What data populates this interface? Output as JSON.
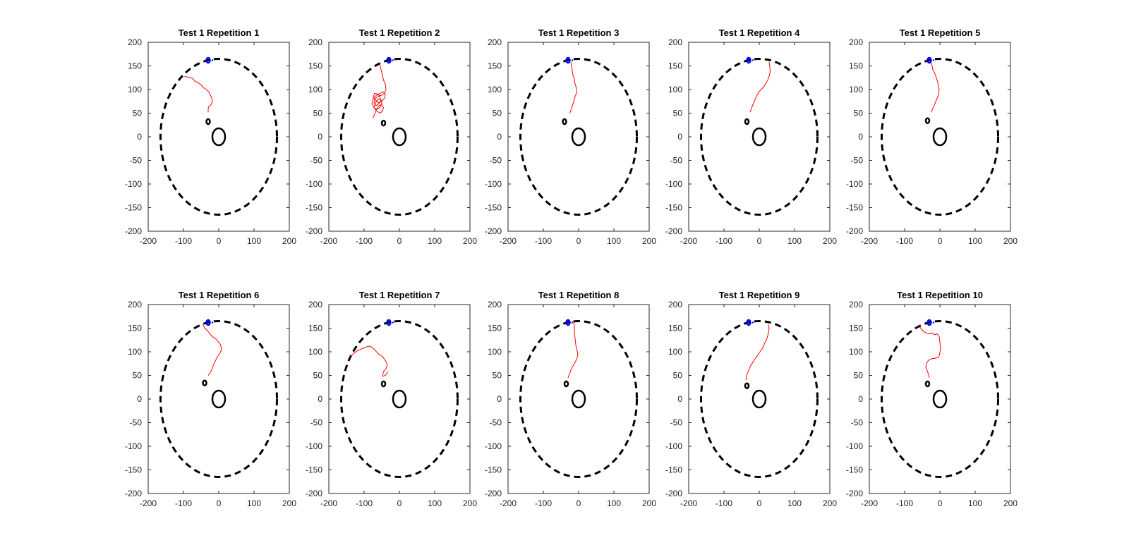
{
  "chart_data": [
    {
      "type": "line",
      "title": "Test 1 Repetition 1",
      "xlim": [
        -200,
        200
      ],
      "ylim": [
        -200,
        200
      ],
      "xticks": [
        -200,
        -100,
        0,
        100,
        200
      ],
      "yticks": [
        -200,
        -150,
        -100,
        -50,
        0,
        50,
        100,
        150,
        200
      ],
      "arena": {
        "style": "dashed",
        "color": "#000000",
        "cx": 0,
        "cy": 0,
        "r": 165
      },
      "platform": {
        "color": "#000000",
        "cx": 0,
        "cy": 0,
        "r": 18
      },
      "start_marker": {
        "color": "#000000",
        "x": -30,
        "y": 32
      },
      "goal_marker": {
        "color": "#0000ff",
        "x": -30,
        "y": 162
      },
      "series": [
        {
          "color": "#ff0000",
          "x": [
            -97,
            -85,
            -75,
            -68,
            -60,
            -50,
            -42,
            -35,
            -28,
            -24,
            -20,
            -18,
            -22,
            -28,
            -30,
            -30
          ],
          "y": [
            128,
            126,
            124,
            118,
            115,
            110,
            103,
            100,
            95,
            88,
            82,
            74,
            68,
            64,
            60,
            52
          ]
        }
      ]
    },
    {
      "type": "line",
      "title": "Test 1 Repetition 2",
      "xlim": [
        -200,
        200
      ],
      "ylim": [
        -200,
        200
      ],
      "xticks": [
        -200,
        -100,
        0,
        100,
        200
      ],
      "yticks": [
        -200,
        -150,
        -100,
        -50,
        0,
        50,
        100,
        150,
        200
      ],
      "arena": {
        "style": "dashed",
        "color": "#000000",
        "cx": 0,
        "cy": 0,
        "r": 165
      },
      "platform": {
        "color": "#000000",
        "cx": 0,
        "cy": 0,
        "r": 18
      },
      "start_marker": {
        "color": "#000000",
        "x": -45,
        "y": 29
      },
      "goal_marker": {
        "color": "#0000ff",
        "x": -30,
        "y": 162
      },
      "series": [
        {
          "color": "#ff0000",
          "x": [
            -55,
            -52,
            -48,
            -45,
            -40,
            -38,
            -42,
            -50,
            -60,
            -70,
            -72,
            -66,
            -58,
            -52,
            -60,
            -70,
            -74,
            -68,
            -60,
            -50,
            -42,
            -40,
            -46,
            -55,
            -65,
            -75,
            -78,
            -72,
            -64,
            -55,
            -50,
            -52,
            -60,
            -68,
            -72,
            -65,
            -55,
            -48,
            -45,
            -50,
            -58,
            -65,
            -70,
            -75
          ],
          "y": [
            152,
            142,
            130,
            120,
            112,
            102,
            92,
            88,
            86,
            80,
            72,
            66,
            70,
            78,
            90,
            92,
            85,
            78,
            72,
            75,
            82,
            90,
            95,
            92,
            88,
            80,
            70,
            62,
            58,
            62,
            70,
            78,
            80,
            72,
            62,
            55,
            50,
            54,
            62,
            68,
            66,
            58,
            48,
            40
          ]
        }
      ]
    },
    {
      "type": "line",
      "title": "Test 1 Repetition 3",
      "xlim": [
        -200,
        200
      ],
      "ylim": [
        -200,
        200
      ],
      "xticks": [
        -200,
        -100,
        0,
        100,
        200
      ],
      "yticks": [
        -200,
        -150,
        -100,
        -50,
        0,
        50,
        100,
        150,
        200
      ],
      "arena": {
        "style": "dashed",
        "color": "#000000",
        "cx": 0,
        "cy": 0,
        "r": 165
      },
      "platform": {
        "color": "#000000",
        "cx": 0,
        "cy": 0,
        "r": 18
      },
      "start_marker": {
        "color": "#000000",
        "x": -40,
        "y": 32
      },
      "goal_marker": {
        "color": "#0000ff",
        "x": -30,
        "y": 162
      },
      "series": [
        {
          "color": "#ff0000",
          "x": [
            -22,
            -20,
            -18,
            -16,
            -12,
            -10,
            -6,
            -5,
            -10,
            -15,
            -20,
            -25
          ],
          "y": [
            158,
            150,
            140,
            130,
            122,
            112,
            102,
            95,
            85,
            72,
            60,
            50
          ]
        }
      ]
    },
    {
      "type": "line",
      "title": "Test 1 Repetition 4",
      "xlim": [
        -200,
        200
      ],
      "ylim": [
        -200,
        200
      ],
      "xticks": [
        -200,
        -100,
        0,
        100,
        200
      ],
      "yticks": [
        -200,
        -150,
        -100,
        -50,
        0,
        50,
        100,
        150,
        200
      ],
      "arena": {
        "style": "dashed",
        "color": "#000000",
        "cx": 0,
        "cy": 0,
        "r": 165
      },
      "platform": {
        "color": "#000000",
        "cx": 0,
        "cy": 0,
        "r": 18
      },
      "start_marker": {
        "color": "#000000",
        "x": -35,
        "y": 32
      },
      "goal_marker": {
        "color": "#0000ff",
        "x": -30,
        "y": 162
      },
      "series": [
        {
          "color": "#ff0000",
          "x": [
            28,
            30,
            31,
            28,
            24,
            18,
            12,
            5,
            0,
            -5,
            -10,
            -14,
            -18,
            -22,
            -26
          ],
          "y": [
            158,
            148,
            138,
            128,
            120,
            112,
            105,
            100,
            96,
            90,
            82,
            75,
            68,
            60,
            52
          ]
        }
      ]
    },
    {
      "type": "line",
      "title": "Test 1 Repetition 5",
      "xlim": [
        -200,
        200
      ],
      "ylim": [
        -200,
        200
      ],
      "xticks": [
        -200,
        -100,
        0,
        100,
        200
      ],
      "yticks": [
        -200,
        -150,
        -100,
        -50,
        0,
        50,
        100,
        150,
        200
      ],
      "arena": {
        "style": "dashed",
        "color": "#000000",
        "cx": 0,
        "cy": 0,
        "r": 165
      },
      "platform": {
        "color": "#000000",
        "cx": 0,
        "cy": 0,
        "r": 18
      },
      "start_marker": {
        "color": "#000000",
        "x": -35,
        "y": 34
      },
      "goal_marker": {
        "color": "#0000ff",
        "x": -30,
        "y": 162
      },
      "series": [
        {
          "color": "#ff0000",
          "x": [
            -25,
            -22,
            -20,
            -15,
            -10,
            -6,
            -2,
            -4,
            -10,
            -15,
            -20,
            -25
          ],
          "y": [
            158,
            150,
            142,
            135,
            125,
            115,
            100,
            88,
            78,
            68,
            60,
            52
          ]
        }
      ]
    },
    {
      "type": "line",
      "title": "Test 1 Repetition 6",
      "xlim": [
        -200,
        200
      ],
      "ylim": [
        -200,
        200
      ],
      "xticks": [
        -200,
        -100,
        0,
        100,
        200
      ],
      "yticks": [
        -200,
        -150,
        -100,
        -50,
        0,
        50,
        100,
        150,
        200
      ],
      "arena": {
        "style": "dashed",
        "color": "#000000",
        "cx": 0,
        "cy": 0,
        "r": 165
      },
      "platform": {
        "color": "#000000",
        "cx": 0,
        "cy": 0,
        "r": 18
      },
      "start_marker": {
        "color": "#000000",
        "x": -40,
        "y": 34
      },
      "goal_marker": {
        "color": "#0000ff",
        "x": -30,
        "y": 162
      },
      "series": [
        {
          "color": "#ff0000",
          "x": [
            -45,
            -40,
            -32,
            -25,
            -18,
            -10,
            -2,
            5,
            8,
            2,
            -5,
            -10,
            -15,
            -20,
            -25,
            -30
          ],
          "y": [
            158,
            150,
            145,
            138,
            132,
            128,
            122,
            115,
            105,
            95,
            88,
            80,
            72,
            62,
            55,
            50
          ]
        }
      ]
    },
    {
      "type": "line",
      "title": "Test 1 Repetition 7",
      "xlim": [
        -200,
        200
      ],
      "ylim": [
        -200,
        200
      ],
      "xticks": [
        -200,
        -100,
        0,
        100,
        200
      ],
      "yticks": [
        -200,
        -150,
        -100,
        -50,
        0,
        50,
        100,
        150,
        200
      ],
      "arena": {
        "style": "dashed",
        "color": "#000000",
        "cx": 0,
        "cy": 0,
        "r": 165
      },
      "platform": {
        "color": "#000000",
        "cx": 0,
        "cy": 0,
        "r": 18
      },
      "start_marker": {
        "color": "#000000",
        "x": -45,
        "y": 32
      },
      "goal_marker": {
        "color": "#0000ff",
        "x": -30,
        "y": 162
      },
      "series": [
        {
          "color": "#ff0000",
          "x": [
            -140,
            -130,
            -120,
            -108,
            -95,
            -85,
            -75,
            -65,
            -57,
            -48,
            -40,
            -36,
            -35,
            -38,
            -42,
            -45,
            -48,
            -40,
            -32
          ],
          "y": [
            88,
            96,
            102,
            106,
            110,
            112,
            108,
            100,
            94,
            90,
            82,
            76,
            70,
            64,
            60,
            58,
            48,
            50,
            58
          ]
        }
      ]
    },
    {
      "type": "line",
      "title": "Test 1 Repetition 8",
      "xlim": [
        -200,
        200
      ],
      "ylim": [
        -200,
        200
      ],
      "xticks": [
        -200,
        -100,
        0,
        100,
        200
      ],
      "yticks": [
        -200,
        -150,
        -100,
        -50,
        0,
        50,
        100,
        150,
        200
      ],
      "arena": {
        "style": "dashed",
        "color": "#000000",
        "cx": 0,
        "cy": 0,
        "r": 165
      },
      "platform": {
        "color": "#000000",
        "cx": 0,
        "cy": 0,
        "r": 18
      },
      "start_marker": {
        "color": "#000000",
        "x": -35,
        "y": 32
      },
      "goal_marker": {
        "color": "#0000ff",
        "x": -30,
        "y": 162
      },
      "series": [
        {
          "color": "#ff0000",
          "x": [
            -15,
            -12,
            -12,
            -10,
            -8,
            -2,
            -5,
            -12,
            -20,
            -25,
            -30
          ],
          "y": [
            165,
            155,
            140,
            128,
            115,
            95,
            85,
            75,
            65,
            55,
            45
          ]
        }
      ]
    },
    {
      "type": "line",
      "title": "Test 1 Repetition 9",
      "xlim": [
        -200,
        200
      ],
      "ylim": [
        -200,
        200
      ],
      "xticks": [
        -200,
        -100,
        0,
        100,
        200
      ],
      "yticks": [
        -200,
        -150,
        -100,
        -50,
        0,
        50,
        100,
        150,
        200
      ],
      "arena": {
        "style": "dashed",
        "color": "#000000",
        "cx": 0,
        "cy": 0,
        "r": 165
      },
      "platform": {
        "color": "#000000",
        "cx": 0,
        "cy": 0,
        "r": 18
      },
      "start_marker": {
        "color": "#000000",
        "x": -35,
        "y": 28
      },
      "goal_marker": {
        "color": "#0000ff",
        "x": -30,
        "y": 162
      },
      "series": [
        {
          "color": "#ff0000",
          "x": [
            25,
            28,
            26,
            22,
            15,
            10,
            2,
            -5,
            -12,
            -18,
            -25,
            -30,
            -35,
            -38
          ],
          "y": [
            158,
            150,
            140,
            128,
            118,
            108,
            100,
            92,
            85,
            78,
            70,
            60,
            52,
            40
          ]
        }
      ]
    },
    {
      "type": "line",
      "title": "Test 1 Repetition 10",
      "xlim": [
        -200,
        200
      ],
      "ylim": [
        -200,
        200
      ],
      "xticks": [
        -200,
        -100,
        0,
        100,
        200
      ],
      "yticks": [
        -200,
        -150,
        -100,
        -50,
        0,
        50,
        100,
        150,
        200
      ],
      "arena": {
        "style": "dashed",
        "color": "#000000",
        "cx": 0,
        "cy": 0,
        "r": 165
      },
      "platform": {
        "color": "#000000",
        "cx": 0,
        "cy": 0,
        "r": 18
      },
      "start_marker": {
        "color": "#000000",
        "x": -35,
        "y": 32
      },
      "goal_marker": {
        "color": "#0000ff",
        "x": -30,
        "y": 162
      },
      "series": [
        {
          "color": "#ff0000",
          "x": [
            -60,
            -52,
            -45,
            -38,
            -30,
            -22,
            -15,
            -8,
            -2,
            0,
            2,
            0,
            -2,
            -5,
            -15,
            -25,
            -32,
            -38,
            -40,
            -36,
            -32,
            -30
          ],
          "y": [
            155,
            148,
            142,
            140,
            138,
            140,
            136,
            138,
            132,
            120,
            108,
            98,
            92,
            88,
            86,
            85,
            82,
            76,
            68,
            60,
            52,
            45
          ]
        }
      ]
    }
  ]
}
